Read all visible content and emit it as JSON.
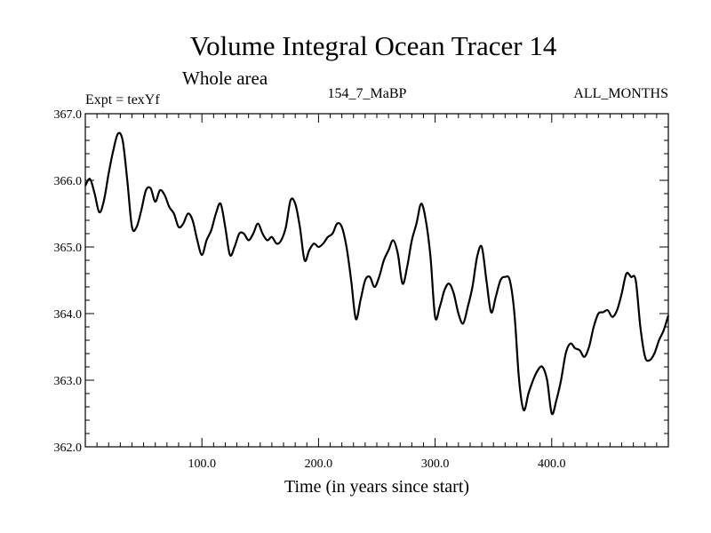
{
  "chart_data": {
    "type": "line",
    "title": "Volume Integral Ocean Tracer 14",
    "subtitle": "Whole area",
    "experiment": "Expt = texYf",
    "run_label": "154_7_MaBP",
    "months_label": "ALL_MONTHS",
    "xlabel": "Time (in years since start)",
    "ylabel": "",
    "xlim": [
      0,
      500
    ],
    "ylim": [
      362.0,
      367.0
    ],
    "x_ticks": [
      100,
      200,
      300,
      400
    ],
    "x_tick_labels": [
      "100.0",
      "200.0",
      "300.0",
      "400.0"
    ],
    "y_ticks": [
      362,
      363,
      364,
      365,
      366,
      367
    ],
    "y_tick_labels": [
      "362.0",
      "363.0",
      "364.0",
      "365.0",
      "366.0",
      "367.0"
    ],
    "grid": false,
    "series": [
      {
        "x": [
          0,
          4,
          8,
          12,
          16,
          20,
          24,
          28,
          32,
          36,
          40,
          44,
          48,
          52,
          56,
          60,
          64,
          68,
          72,
          76,
          80,
          84,
          88,
          92,
          96,
          100,
          104,
          108,
          112,
          116,
          120,
          124,
          128,
          132,
          136,
          140,
          144,
          148,
          152,
          156,
          160,
          164,
          168,
          172,
          176,
          180,
          184,
          188,
          192,
          196,
          200,
          204,
          208,
          212,
          216,
          220,
          224,
          228,
          232,
          236,
          240,
          244,
          248,
          252,
          256,
          260,
          264,
          268,
          272,
          276,
          280,
          284,
          288,
          292,
          296,
          300,
          304,
          308,
          312,
          316,
          320,
          324,
          328,
          332,
          336,
          340,
          344,
          348,
          352,
          356,
          360,
          364,
          368,
          372,
          376,
          380,
          384,
          388,
          392,
          396,
          400,
          404,
          408,
          412,
          416,
          420,
          424,
          428,
          432,
          436,
          440,
          444,
          448,
          452,
          456,
          460,
          464,
          468,
          472,
          476,
          480,
          484,
          488,
          492,
          496,
          500
        ],
        "values": [
          365.92,
          366.02,
          365.8,
          365.52,
          365.7,
          366.1,
          366.45,
          366.7,
          366.6,
          366.0,
          365.3,
          365.3,
          365.55,
          365.85,
          365.88,
          365.68,
          365.85,
          365.78,
          365.6,
          365.5,
          365.3,
          365.35,
          365.5,
          365.4,
          365.1,
          364.88,
          365.1,
          365.25,
          365.5,
          365.65,
          365.3,
          364.88,
          365.0,
          365.2,
          365.2,
          365.1,
          365.2,
          365.35,
          365.2,
          365.1,
          365.15,
          365.05,
          365.1,
          365.3,
          365.7,
          365.65,
          365.3,
          364.8,
          364.95,
          365.05,
          365.0,
          365.05,
          365.15,
          365.2,
          365.35,
          365.3,
          365.0,
          364.5,
          363.92,
          364.2,
          364.5,
          364.55,
          364.4,
          364.55,
          364.8,
          364.95,
          365.1,
          364.9,
          364.45,
          364.7,
          365.1,
          365.35,
          365.65,
          365.4,
          364.85,
          363.95,
          364.1,
          364.35,
          364.45,
          364.3,
          364.0,
          363.85,
          364.1,
          364.4,
          364.85,
          365.0,
          364.5,
          364.02,
          364.25,
          364.5,
          364.55,
          364.5,
          364.0,
          363.0,
          362.55,
          362.8,
          363.0,
          363.15,
          363.2,
          363.0,
          362.5,
          362.7,
          363.0,
          363.4,
          363.55,
          363.48,
          363.45,
          363.35,
          363.5,
          363.8,
          364.0,
          364.02,
          364.05,
          363.95,
          364.05,
          364.3,
          364.6,
          364.55,
          364.5,
          363.8,
          363.35,
          363.3,
          363.4,
          363.6,
          363.75,
          363.97
        ]
      }
    ]
  }
}
